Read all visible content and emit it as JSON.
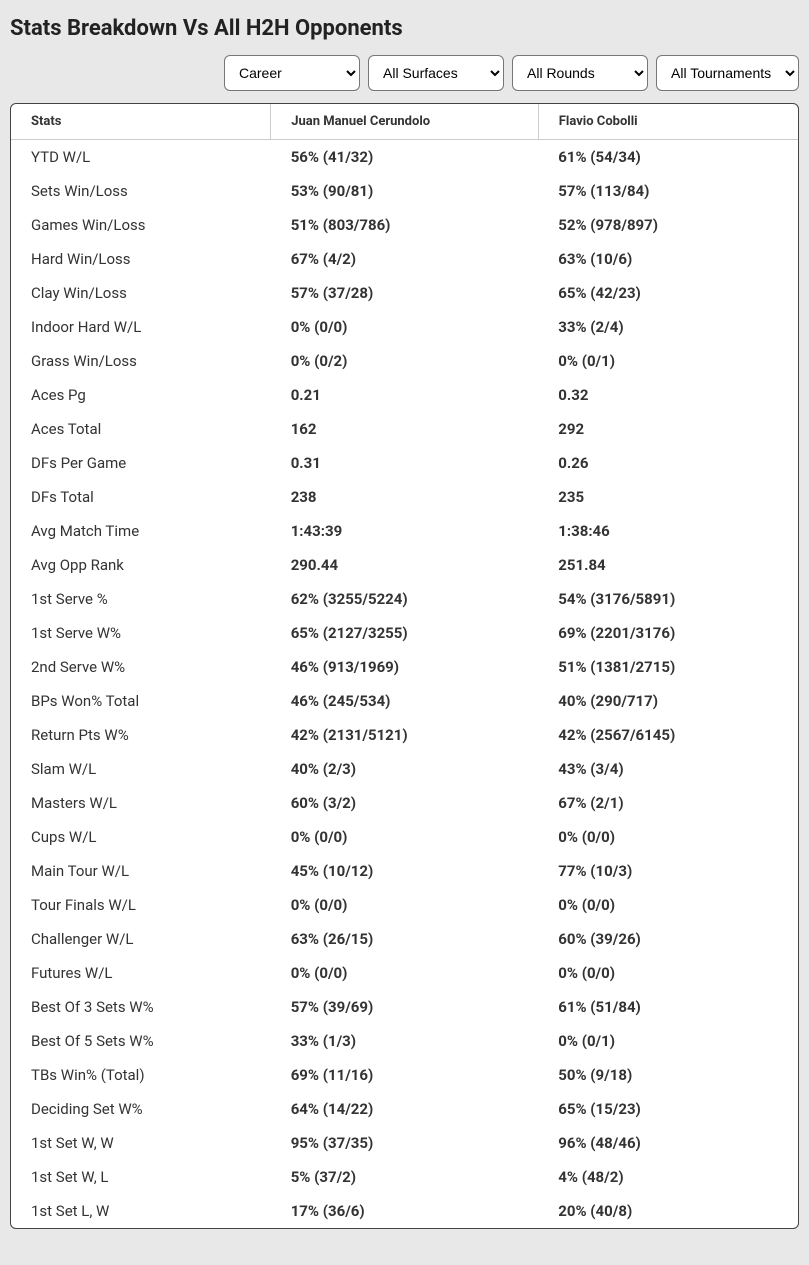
{
  "title": "Stats Breakdown Vs All H2H Opponents",
  "filters": {
    "period": "Career",
    "surface": "All Surfaces",
    "round": "All Rounds",
    "tournament": "All Tournaments"
  },
  "columns": {
    "stats": "Stats",
    "p1": "Juan Manuel Cerundolo",
    "p2": "Flavio Cobolli"
  },
  "rows": [
    {
      "label": "YTD W/L",
      "p1": "56% (41/32)",
      "p2": "61% (54/34)"
    },
    {
      "label": "Sets Win/Loss",
      "p1": "53% (90/81)",
      "p2": "57% (113/84)"
    },
    {
      "label": "Games Win/Loss",
      "p1": "51% (803/786)",
      "p2": "52% (978/897)"
    },
    {
      "label": "Hard Win/Loss",
      "p1": "67% (4/2)",
      "p2": "63% (10/6)"
    },
    {
      "label": "Clay Win/Loss",
      "p1": "57% (37/28)",
      "p2": "65% (42/23)"
    },
    {
      "label": "Indoor Hard W/L",
      "p1": "0% (0/0)",
      "p2": "33% (2/4)"
    },
    {
      "label": "Grass Win/Loss",
      "p1": "0% (0/2)",
      "p2": "0% (0/1)"
    },
    {
      "label": "Aces Pg",
      "p1": "0.21",
      "p2": "0.32"
    },
    {
      "label": "Aces Total",
      "p1": "162",
      "p2": "292"
    },
    {
      "label": "DFs Per Game",
      "p1": "0.31",
      "p2": "0.26"
    },
    {
      "label": "DFs Total",
      "p1": "238",
      "p2": "235"
    },
    {
      "label": "Avg Match Time",
      "p1": "1:43:39",
      "p2": "1:38:46"
    },
    {
      "label": "Avg Opp Rank",
      "p1": "290.44",
      "p2": "251.84"
    },
    {
      "label": "1st Serve %",
      "p1": "62% (3255/5224)",
      "p2": "54% (3176/5891)"
    },
    {
      "label": "1st Serve W%",
      "p1": "65% (2127/3255)",
      "p2": "69% (2201/3176)"
    },
    {
      "label": "2nd Serve W%",
      "p1": "46% (913/1969)",
      "p2": "51% (1381/2715)"
    },
    {
      "label": "BPs Won% Total",
      "p1": "46% (245/534)",
      "p2": "40% (290/717)"
    },
    {
      "label": "Return Pts W%",
      "p1": "42% (2131/5121)",
      "p2": "42% (2567/6145)"
    },
    {
      "label": "Slam W/L",
      "p1": "40% (2/3)",
      "p2": "43% (3/4)"
    },
    {
      "label": "Masters W/L",
      "p1": "60% (3/2)",
      "p2": "67% (2/1)"
    },
    {
      "label": "Cups W/L",
      "p1": "0% (0/0)",
      "p2": "0% (0/0)"
    },
    {
      "label": "Main Tour W/L",
      "p1": "45% (10/12)",
      "p2": "77% (10/3)"
    },
    {
      "label": "Tour Finals W/L",
      "p1": "0% (0/0)",
      "p2": "0% (0/0)"
    },
    {
      "label": "Challenger W/L",
      "p1": "63% (26/15)",
      "p2": "60% (39/26)"
    },
    {
      "label": "Futures W/L",
      "p1": "0% (0/0)",
      "p2": "0% (0/0)"
    },
    {
      "label": "Best Of 3 Sets W%",
      "p1": "57% (39/69)",
      "p2": "61% (51/84)"
    },
    {
      "label": "Best Of 5 Sets W%",
      "p1": "33% (1/3)",
      "p2": "0% (0/1)"
    },
    {
      "label": "TBs Win% (Total)",
      "p1": "69% (11/16)",
      "p2": "50% (9/18)"
    },
    {
      "label": "Deciding Set W%",
      "p1": "64% (14/22)",
      "p2": "65% (15/23)"
    },
    {
      "label": "1st Set W, W",
      "p1": "95% (37/35)",
      "p2": "96% (48/46)"
    },
    {
      "label": "1st Set W, L",
      "p1": "5% (37/2)",
      "p2": "4% (48/2)"
    },
    {
      "label": "1st Set L, W",
      "p1": "17% (36/6)",
      "p2": "20% (40/8)"
    }
  ]
}
